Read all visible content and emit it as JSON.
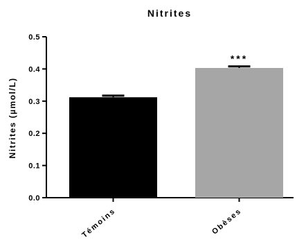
{
  "chart_data": {
    "type": "bar",
    "title": "Nitrites",
    "ylabel": "Nitrites (µmol/L)",
    "xlabel": "",
    "categories": [
      "Témoins",
      "Obèses"
    ],
    "values": [
      0.312,
      0.403
    ],
    "errors": [
      0.005,
      0.005
    ],
    "bar_colors": [
      "#000000",
      "#a6a6a6"
    ],
    "significance": [
      "",
      "***"
    ],
    "ylim": [
      0,
      0.5
    ],
    "yticks": [
      "0.0",
      "0.1",
      "0.2",
      "0.3",
      "0.4",
      "0.5"
    ],
    "grid": false,
    "legend": "none"
  }
}
